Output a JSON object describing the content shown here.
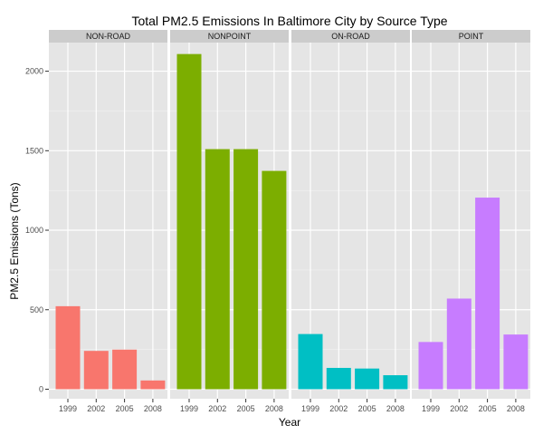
{
  "chart_data": {
    "type": "bar",
    "layout": "faceted",
    "title": "Total PM2.5 Emissions In Baltimore City by Source Type",
    "xlabel": "Year",
    "ylabel": "PM2.5 Emissions (Tons)",
    "categories": [
      "1999",
      "2002",
      "2005",
      "2008"
    ],
    "ylim": [
      -60,
      2180
    ],
    "yticks": [
      0,
      500,
      1000,
      1500,
      2000
    ],
    "grid": true,
    "legend": "none",
    "panels": [
      {
        "name": "NON-ROAD",
        "color": "#F8766D",
        "values": [
          522,
          241,
          249,
          55
        ]
      },
      {
        "name": "NONPOINT",
        "color": "#7CAE00",
        "values": [
          2108,
          1510,
          1510,
          1373
        ]
      },
      {
        "name": "ON-ROAD",
        "color": "#00BFC4",
        "values": [
          347,
          134,
          130,
          88
        ]
      },
      {
        "name": "POINT",
        "color": "#C77CFF",
        "values": [
          297,
          570,
          1205,
          344
        ]
      }
    ]
  }
}
